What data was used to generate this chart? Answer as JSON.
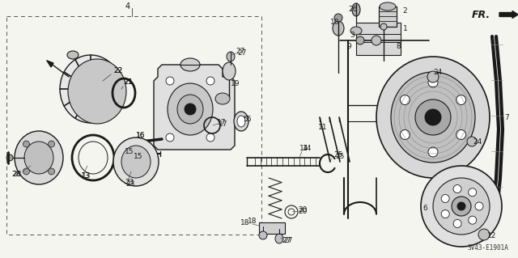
{
  "diagram_id": "SV43-E1901A",
  "fr_label": "FR.",
  "background_color": "#f5f5f0",
  "line_color": "#1a1a1a",
  "fig_w": 6.4,
  "fig_h": 3.19,
  "dpi": 100
}
